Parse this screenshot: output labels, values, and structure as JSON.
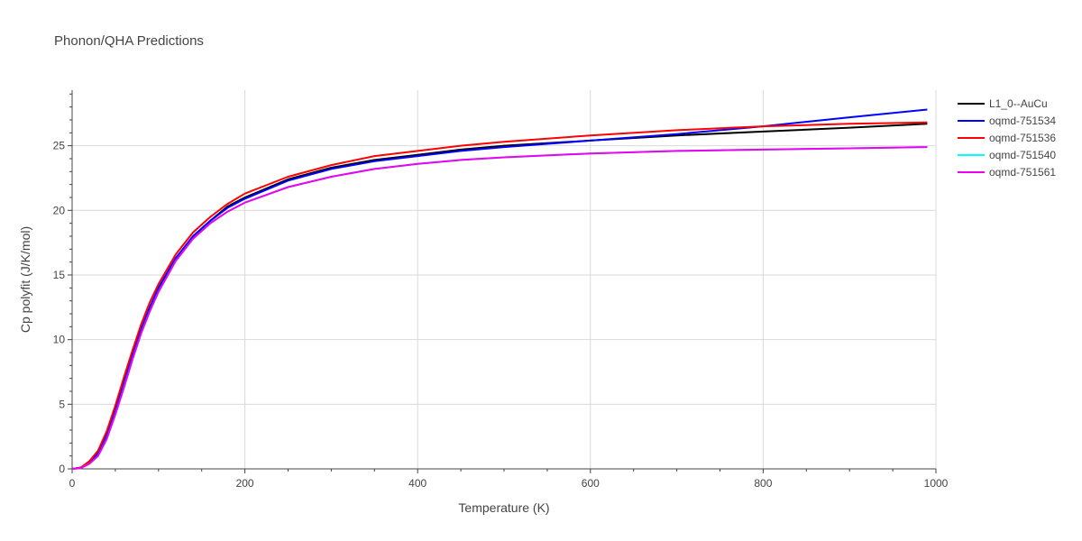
{
  "chart_data": {
    "type": "line",
    "title": "Phonon/QHA Predictions",
    "xlabel": "Temperature (K)",
    "ylabel": "Cp polyfit (J/K/mol)",
    "xlim": [
      0,
      1000
    ],
    "ylim": [
      0,
      29.3
    ],
    "xticks": [
      0,
      200,
      400,
      600,
      800,
      1000
    ],
    "yticks": [
      0,
      5,
      10,
      15,
      20,
      25
    ],
    "grid": true,
    "legend_position": "top-right",
    "x": [
      0,
      10,
      20,
      30,
      40,
      50,
      60,
      70,
      80,
      90,
      100,
      120,
      140,
      160,
      180,
      200,
      250,
      300,
      350,
      400,
      450,
      500,
      600,
      700,
      800,
      900,
      990
    ],
    "series": [
      {
        "name": "L1_0--AuCu",
        "color": "#000000",
        "values": [
          0,
          0.1,
          0.5,
          1.2,
          2.6,
          4.6,
          6.8,
          8.9,
          10.8,
          12.5,
          14.0,
          16.3,
          18.0,
          19.2,
          20.3,
          21.0,
          22.4,
          23.3,
          23.9,
          24.3,
          24.7,
          25.0,
          25.4,
          25.8,
          26.1,
          26.4,
          26.7
        ]
      },
      {
        "name": "oqmd-751534",
        "color": "#0000ff",
        "values": [
          0,
          0.1,
          0.5,
          1.2,
          2.6,
          4.6,
          6.8,
          8.9,
          10.8,
          12.5,
          14.0,
          16.3,
          18.0,
          19.2,
          20.2,
          20.9,
          22.3,
          23.2,
          23.8,
          24.2,
          24.6,
          24.9,
          25.4,
          25.9,
          26.5,
          27.2,
          27.8
        ]
      },
      {
        "name": "oqmd-751536",
        "color": "#ff0000",
        "values": [
          0,
          0.1,
          0.6,
          1.4,
          2.9,
          4.9,
          7.1,
          9.2,
          11.2,
          12.9,
          14.3,
          16.6,
          18.3,
          19.5,
          20.5,
          21.3,
          22.6,
          23.5,
          24.2,
          24.6,
          25.0,
          25.3,
          25.8,
          26.2,
          26.5,
          26.7,
          26.8
        ]
      },
      {
        "name": "oqmd-751540",
        "color": "#00ffff",
        "values": [
          0,
          0.05,
          0.4,
          1.0,
          2.3,
          4.2,
          6.3,
          8.5,
          10.5,
          12.2,
          13.7,
          16.1,
          17.8,
          19.0,
          19.9,
          20.6,
          21.8,
          22.6,
          23.2,
          23.6,
          23.9,
          24.1,
          24.4,
          24.6,
          24.7,
          24.8,
          24.9
        ]
      },
      {
        "name": "oqmd-751561",
        "color": "#ee00ee",
        "values": [
          0,
          0.05,
          0.4,
          1.0,
          2.3,
          4.2,
          6.3,
          8.5,
          10.5,
          12.2,
          13.7,
          16.1,
          17.8,
          19.0,
          19.9,
          20.6,
          21.8,
          22.6,
          23.2,
          23.6,
          23.9,
          24.1,
          24.4,
          24.6,
          24.7,
          24.8,
          24.9
        ]
      }
    ]
  }
}
